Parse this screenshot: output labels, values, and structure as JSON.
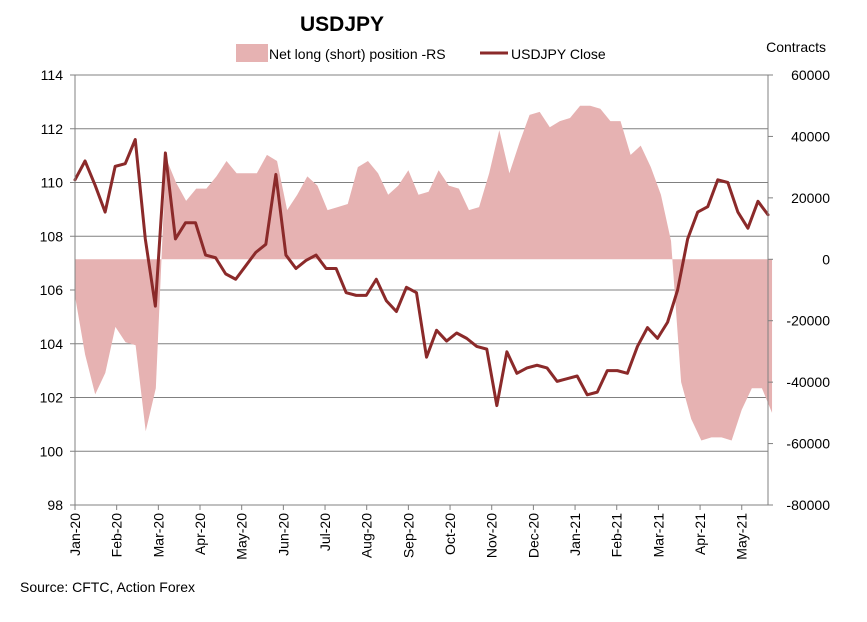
{
  "chart_data": {
    "type": "line",
    "title": "USDJPY",
    "source": "Source: CFTC, Action Forex",
    "right_axis_label": "Contracts",
    "left_axis": {
      "min": 98,
      "max": 114,
      "ticks": [
        "114",
        "112",
        "110",
        "108",
        "106",
        "104",
        "102",
        "100",
        "98"
      ]
    },
    "right_axis": {
      "min": -80000,
      "max": 60000,
      "ticks": [
        "60000",
        "40000",
        "20000",
        "0",
        "-20000",
        "-40000",
        "-60000",
        "-80000"
      ]
    },
    "x_labels": [
      "Jan-20",
      "Feb-20",
      "Mar-20",
      "Apr-20",
      "May-20",
      "Jun-20",
      "Jul-20",
      "Aug-20",
      "Sep-20",
      "Oct-20",
      "Nov-20",
      "Dec-20",
      "Jan-21",
      "Feb-21",
      "Mar-21",
      "Apr-21",
      "May-21"
    ],
    "legend": [
      "Net long (short) position -RS",
      "USDJPY Close"
    ],
    "colors": {
      "area": "#e6b2b2",
      "line": "#8b2a2a",
      "grid": "#808080",
      "axis": "#808080"
    },
    "series": [
      {
        "name": "Net long (short) position -RS",
        "axis": "right",
        "type": "area",
        "values": [
          -12000,
          -31000,
          -44000,
          -37000,
          -22000,
          -27000,
          -28000,
          -56000,
          -42000,
          33000,
          25000,
          19000,
          23000,
          23000,
          27000,
          32000,
          28000,
          28000,
          28000,
          34000,
          32000,
          16000,
          21000,
          27000,
          24000,
          16000,
          17000,
          18000,
          30000,
          32000,
          28000,
          21000,
          24000,
          29000,
          21000,
          22000,
          29000,
          24000,
          23000,
          16000,
          17000,
          28000,
          42000,
          28000,
          38000,
          47000,
          48000,
          43000,
          45000,
          46000,
          50000,
          50000,
          49000,
          45000,
          45000,
          34000,
          37000,
          30000,
          21000,
          6000,
          -40000,
          -52000,
          -59000,
          -58000,
          -58000,
          -59000,
          -49000,
          -42000,
          -42000,
          -50000
        ],
        "end_index": 68.6
      },
      {
        "name": "USDJPY Close",
        "axis": "left",
        "type": "line",
        "values": [
          110.1,
          110.8,
          109.9,
          108.9,
          110.6,
          110.7,
          111.6,
          107.9,
          105.4,
          111.1,
          107.9,
          108.5,
          108.5,
          107.3,
          107.2,
          106.6,
          106.4,
          106.9,
          107.4,
          107.7,
          110.3,
          107.3,
          106.8,
          107.1,
          107.3,
          106.8,
          106.8,
          105.9,
          105.8,
          105.8,
          106.4,
          105.6,
          105.2,
          106.1,
          105.9,
          103.5,
          104.5,
          104.1,
          104.4,
          104.2,
          103.9,
          103.8,
          101.7,
          103.7,
          102.9,
          103.1,
          103.2,
          103.1,
          102.6,
          102.7,
          102.8,
          102.1,
          102.2,
          103.0,
          103.0,
          102.9,
          103.9,
          104.6,
          104.2,
          104.8,
          106.0,
          107.9,
          108.9,
          109.1,
          110.1,
          110.0,
          108.9,
          108.3,
          109.3,
          108.8
        ]
      }
    ]
  }
}
